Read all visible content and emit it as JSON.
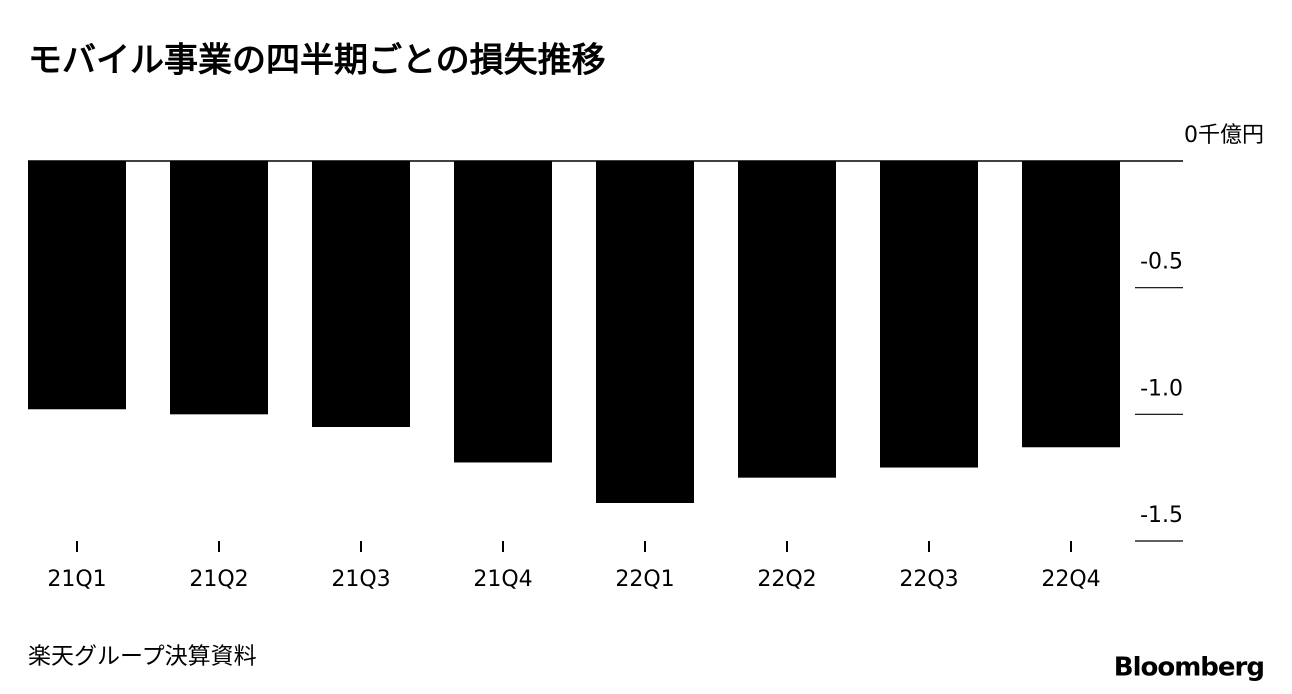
{
  "chart_data": {
    "type": "bar",
    "title": "モバイル事業の四半期ごとの損失推移",
    "categories": [
      "21Q1",
      "21Q2",
      "21Q3",
      "21Q4",
      "22Q1",
      "22Q2",
      "22Q3",
      "22Q4"
    ],
    "values": [
      -0.98,
      -1.0,
      -1.05,
      -1.19,
      -1.35,
      -1.25,
      -1.21,
      -1.13
    ],
    "color": "#000000",
    "ylim": [
      -1.5,
      0
    ],
    "yticks": [
      {
        "value": 0,
        "label": "0千億円"
      },
      -0.5,
      {
        "value": -1,
        "label": "-1.0"
      },
      -1.5
    ],
    "source": "楽天グループ決算資料",
    "brand": "Bloomberg"
  }
}
